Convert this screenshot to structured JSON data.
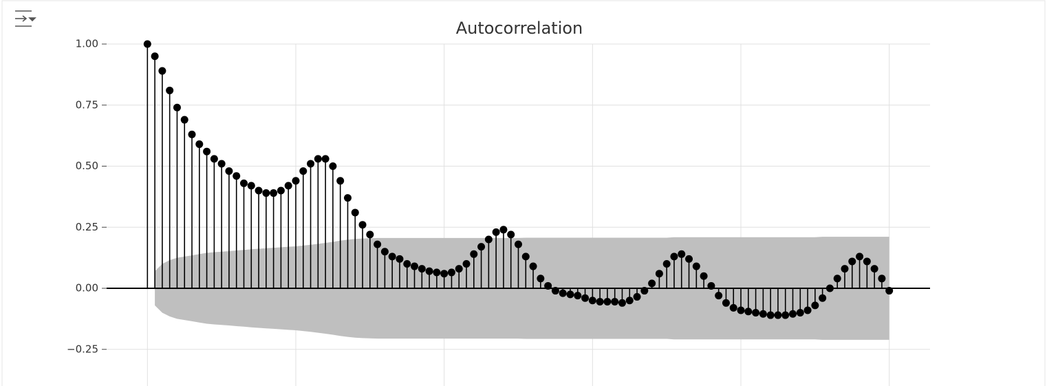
{
  "chart_data": {
    "type": "stem",
    "title": "Autocorrelation",
    "x": [
      0,
      1,
      2,
      3,
      4,
      5,
      6,
      7,
      8,
      9,
      10,
      11,
      12,
      13,
      14,
      15,
      16,
      17,
      18,
      19,
      20,
      21,
      22,
      23,
      24,
      25,
      26,
      27,
      28,
      29,
      30,
      31,
      32,
      33,
      34,
      35,
      36,
      37,
      38,
      39,
      40,
      41,
      42,
      43,
      44,
      45,
      46,
      47,
      48,
      49,
      50,
      51,
      52,
      53,
      54,
      55,
      56,
      57,
      58,
      59,
      60,
      61,
      62,
      63,
      64,
      65,
      66,
      67,
      68,
      69,
      70,
      71,
      72,
      73,
      74,
      75,
      76,
      77,
      78,
      79,
      80,
      81,
      82,
      83,
      84,
      85,
      86,
      87,
      88,
      89,
      90,
      91,
      92,
      93,
      94,
      95,
      96,
      97,
      98,
      99,
      100
    ],
    "values": [
      1,
      0.95,
      0.89,
      0.81,
      0.74,
      0.69,
      0.63,
      0.59,
      0.56,
      0.53,
      0.51,
      0.48,
      0.46,
      0.43,
      0.42,
      0.4,
      0.39,
      0.39,
      0.4,
      0.42,
      0.44,
      0.48,
      0.51,
      0.53,
      0.53,
      0.5,
      0.44,
      0.37,
      0.31,
      0.26,
      0.22,
      0.18,
      0.15,
      0.13,
      0.12,
      0.1,
      0.09,
      0.08,
      0.07,
      0.065,
      0.06,
      0.065,
      0.08,
      0.1,
      0.14,
      0.17,
      0.2,
      0.23,
      0.24,
      0.22,
      0.18,
      0.13,
      0.09,
      0.04,
      0.01,
      -0.01,
      -0.02,
      -0.025,
      -0.03,
      -0.04,
      -0.05,
      -0.055,
      -0.055,
      -0.055,
      -0.06,
      -0.05,
      -0.035,
      -0.01,
      0.02,
      0.06,
      0.1,
      0.13,
      0.14,
      0.12,
      0.09,
      0.05,
      0.01,
      -0.03,
      -0.06,
      -0.08,
      -0.09,
      -0.095,
      -0.1,
      -0.105,
      -0.11,
      -0.11,
      -0.11,
      -0.105,
      -0.1,
      -0.09,
      -0.07,
      -0.04,
      0,
      0.04,
      0.08,
      0.11,
      0.13,
      0.11,
      0.08,
      0.04,
      -0.01
    ],
    "conf_upper": [
      null,
      0.07,
      0.1,
      0.115,
      0.125,
      0.13,
      0.135,
      0.14,
      0.145,
      0.148,
      0.15,
      0.152,
      0.155,
      0.157,
      0.16,
      0.162,
      0.164,
      0.166,
      0.168,
      0.17,
      0.172,
      0.175,
      0.178,
      0.182,
      0.186,
      0.19,
      0.195,
      0.199,
      0.202,
      0.204,
      0.205,
      0.206,
      0.206,
      0.206,
      0.206,
      0.206,
      0.206,
      0.206,
      0.206,
      0.206,
      0.206,
      0.206,
      0.206,
      0.206,
      0.206,
      0.206,
      0.206,
      0.206,
      0.206,
      0.206,
      0.206,
      0.207,
      0.207,
      0.207,
      0.207,
      0.207,
      0.207,
      0.207,
      0.207,
      0.207,
      0.207,
      0.207,
      0.207,
      0.207,
      0.207,
      0.207,
      0.207,
      0.207,
      0.207,
      0.207,
      0.207,
      0.209,
      0.209,
      0.209,
      0.209,
      0.209,
      0.209,
      0.209,
      0.209,
      0.209,
      0.209,
      0.209,
      0.209,
      0.209,
      0.209,
      0.209,
      0.209,
      0.209,
      0.209,
      0.209,
      0.209,
      0.211,
      0.211,
      0.211,
      0.211,
      0.211,
      0.211,
      0.211,
      0.211,
      0.211,
      0.211
    ],
    "conf_lower": [
      null,
      -0.07,
      -0.1,
      -0.115,
      -0.125,
      -0.13,
      -0.135,
      -0.14,
      -0.145,
      -0.148,
      -0.15,
      -0.152,
      -0.155,
      -0.157,
      -0.16,
      -0.162,
      -0.164,
      -0.166,
      -0.168,
      -0.17,
      -0.172,
      -0.175,
      -0.178,
      -0.182,
      -0.186,
      -0.19,
      -0.195,
      -0.199,
      -0.202,
      -0.204,
      -0.205,
      -0.206,
      -0.206,
      -0.206,
      -0.206,
      -0.206,
      -0.206,
      -0.206,
      -0.206,
      -0.206,
      -0.206,
      -0.206,
      -0.206,
      -0.206,
      -0.206,
      -0.206,
      -0.206,
      -0.206,
      -0.206,
      -0.206,
      -0.206,
      -0.207,
      -0.207,
      -0.207,
      -0.207,
      -0.207,
      -0.207,
      -0.207,
      -0.207,
      -0.207,
      -0.207,
      -0.207,
      -0.207,
      -0.207,
      -0.207,
      -0.207,
      -0.207,
      -0.207,
      -0.207,
      -0.207,
      -0.207,
      -0.209,
      -0.209,
      -0.209,
      -0.209,
      -0.209,
      -0.209,
      -0.209,
      -0.209,
      -0.209,
      -0.209,
      -0.209,
      -0.209,
      -0.209,
      -0.209,
      -0.209,
      -0.209,
      -0.209,
      -0.209,
      -0.209,
      -0.209,
      -0.211,
      -0.211,
      -0.211,
      -0.211,
      -0.211,
      -0.211,
      -0.211,
      -0.211,
      -0.211,
      -0.211
    ],
    "color": "#000000",
    "band_color": "#bfbfbf",
    "xlim": [
      -5.5,
      105.5
    ],
    "xticks": [
      0,
      20,
      40,
      60,
      80,
      100
    ],
    "ylim": [
      -0.4,
      1.0
    ],
    "yticks": [
      {
        "value": -0.25,
        "label": "−0.25"
      },
      {
        "value": 0,
        "label": "0.00"
      },
      {
        "value": 0.25,
        "label": "0.25"
      },
      {
        "value": 0.5,
        "label": "0.50"
      },
      {
        "value": 0.75,
        "label": "0.75"
      },
      {
        "value": 1,
        "label": "1.00"
      }
    ],
    "grid": true
  }
}
